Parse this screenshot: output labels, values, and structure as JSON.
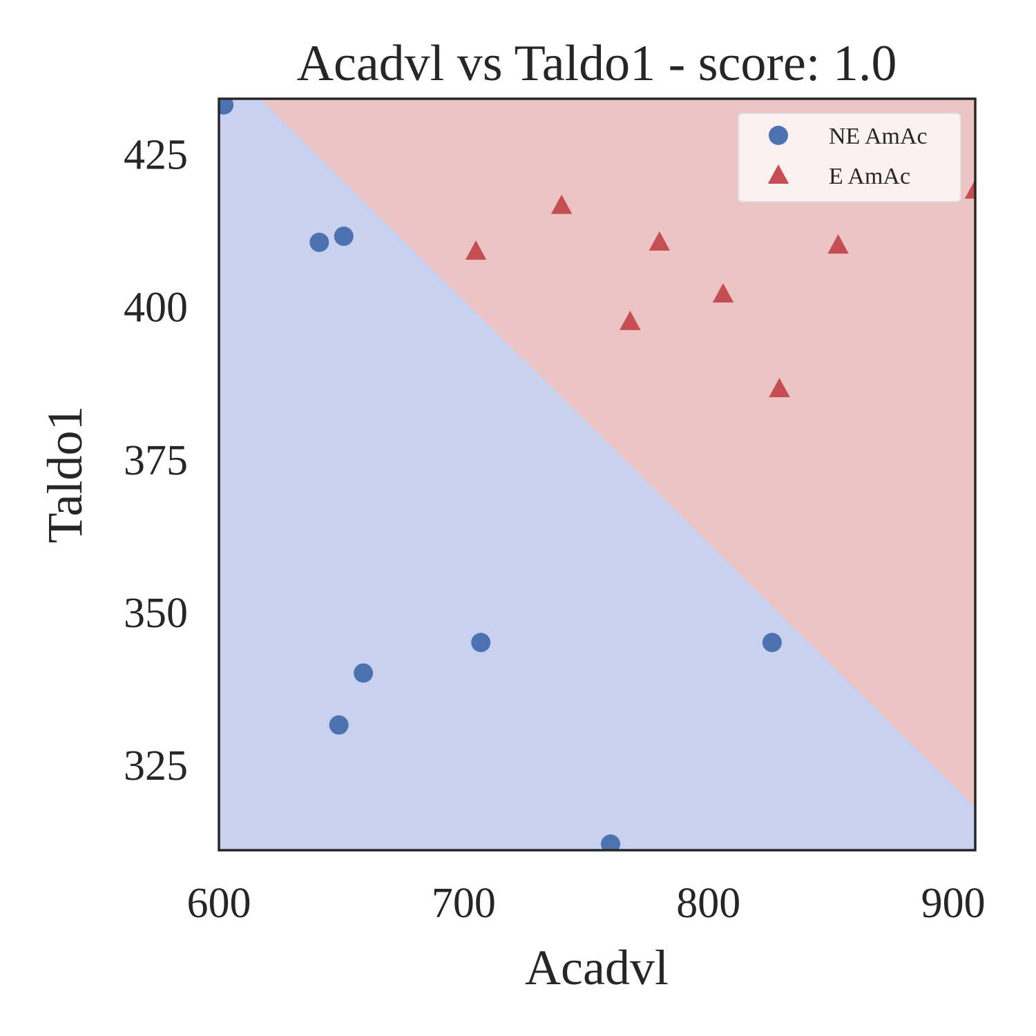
{
  "chart_data": {
    "type": "scatter",
    "title": "Acadvl vs Taldo1 - score: 1.0",
    "xlabel": "Acadvl",
    "ylabel": "Taldo1",
    "xlim": [
      600,
      909
    ],
    "ylim": [
      311,
      434
    ],
    "xticks": [
      "600",
      "700",
      "800",
      "900"
    ],
    "yticks": [
      "325",
      "350",
      "375",
      "400",
      "425"
    ],
    "grid": false,
    "legend_position": "top-right",
    "decision_boundary": {
      "points": [
        [
          617,
          434
        ],
        [
          909,
          318
        ]
      ],
      "region_above_class": "E AmAc",
      "region_below_class": "NE AmAc",
      "colors": {
        "NE AmAc": "#c9d1f1",
        "E AmAc": "#ecc4c4"
      }
    },
    "series": [
      {
        "name": "NE AmAc",
        "marker": "circle",
        "color": "#4c72b0",
        "points": [
          [
            602,
            433
          ],
          [
            641,
            410.5
          ],
          [
            651,
            411.5
          ],
          [
            659,
            340
          ],
          [
            649,
            331.5
          ],
          [
            707,
            345
          ],
          [
            826,
            345
          ],
          [
            760,
            312
          ]
        ]
      },
      {
        "name": "E AmAc",
        "marker": "triangle",
        "color": "#c44e52",
        "points": [
          [
            705,
            409
          ],
          [
            740,
            416.5
          ],
          [
            780,
            410.5
          ],
          [
            768,
            397.5
          ],
          [
            806,
            402
          ],
          [
            829,
            386.5
          ],
          [
            853,
            410
          ],
          [
            909,
            419
          ]
        ]
      }
    ]
  }
}
